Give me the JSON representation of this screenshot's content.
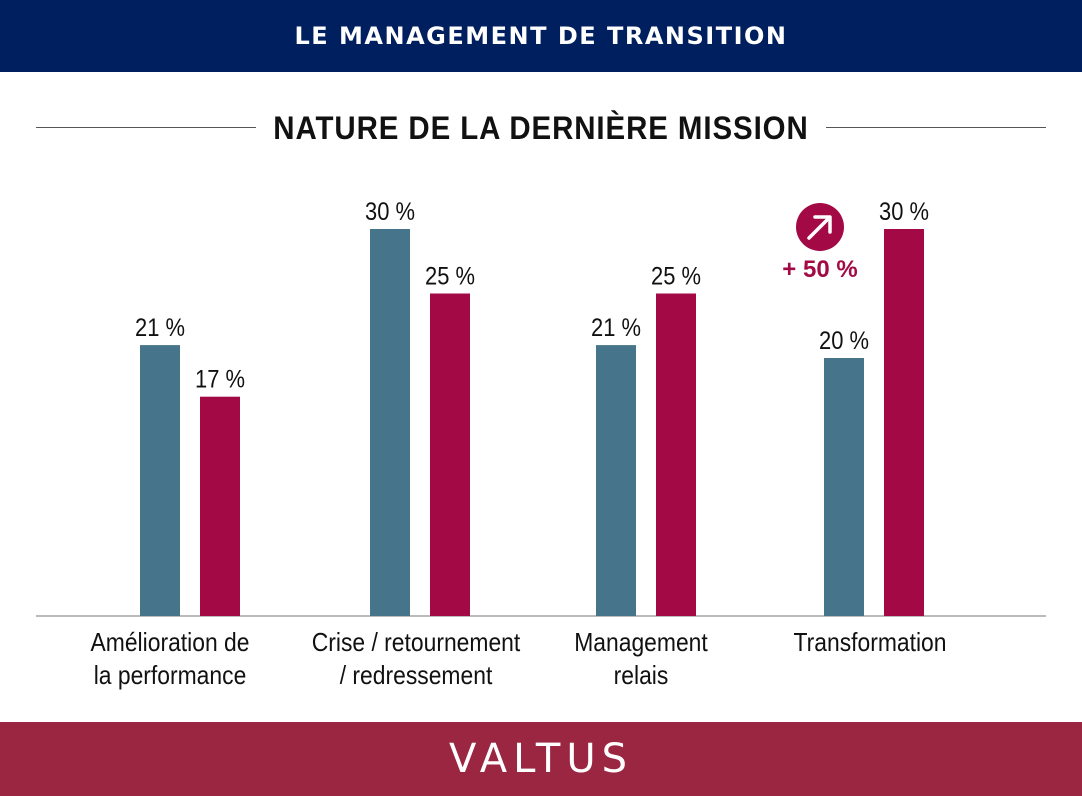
{
  "header": {
    "banner_title": "LE MANAGEMENT DE TRANSITION"
  },
  "colors": {
    "navy": "#001f5f",
    "series1": "#46758b",
    "series2": "#a30a45",
    "footer": "#9b2641"
  },
  "trend": {
    "label": "+ 50 %",
    "icon": "arrow-up-right-icon"
  },
  "footer": {
    "logo_text": "VALTUS"
  },
  "chart_data": {
    "type": "bar",
    "title": "NATURE DE LA DERNIÈRE MISSION",
    "categories": [
      [
        "Amélioration de",
        "la performance"
      ],
      [
        "Crise / retournement",
        "/ redressement"
      ],
      [
        "Management",
        "relais"
      ],
      [
        "Transformation"
      ]
    ],
    "series": [
      {
        "values": [
          21,
          30,
          21,
          20
        ],
        "labels": [
          "21 %",
          "30 %",
          "21 %",
          "20 %"
        ],
        "color": "#46758b"
      },
      {
        "values": [
          17,
          25,
          25,
          30
        ],
        "labels": [
          "17 %",
          "25 %",
          "25 %",
          "30 %"
        ],
        "color": "#a30a45"
      }
    ],
    "ylim": [
      0,
      30
    ],
    "xlabel": "",
    "ylabel": "",
    "grid": false
  }
}
